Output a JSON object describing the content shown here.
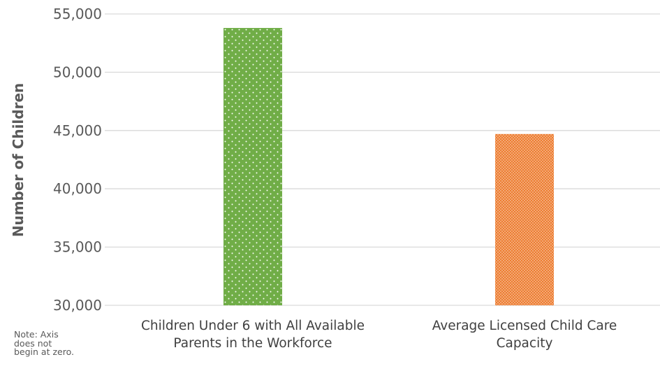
{
  "chart_data": {
    "type": "bar",
    "title": "",
    "xlabel": "",
    "ylabel": "Number of Children",
    "ylim": [
      30000,
      55000
    ],
    "yticks": [
      30000,
      35000,
      40000,
      45000,
      50000,
      55000
    ],
    "ytick_labels": [
      "30,000",
      "35,000",
      "40,000",
      "45,000",
      "50,000",
      "55,000"
    ],
    "grid": true,
    "categories": [
      "Children Under 6 with All Available Parents in the Workforce",
      "Average Licensed Child Care Capacity"
    ],
    "values": [
      53800,
      44700
    ],
    "colors": [
      "#70ad47",
      "#ed7d31"
    ],
    "legend": "none"
  },
  "note": "Note: Axis does not begin at zero."
}
